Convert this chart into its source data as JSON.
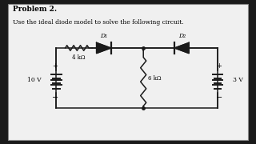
{
  "title_bold": "Problem 2.",
  "subtitle": "Use the ideal diode model to solve the following circuit.",
  "bg_color": "#f0f0f0",
  "circuit_color": "#1a1a1a",
  "text_color": "#000000",
  "outer_bg": "#1a1a1a",
  "V1_label": "10 V",
  "V2_label": "3 V",
  "R1_label": "4 kΩ",
  "R2_label": "6 kΩ",
  "D1_label": "D₁",
  "D2_label": "D₂",
  "V1_plus": "+",
  "V1_minus": "−",
  "V2_plus": "+",
  "V2_minus": "−",
  "figsize": [
    3.2,
    1.8
  ],
  "dpi": 100,
  "xlim": [
    0,
    10
  ],
  "ylim": [
    0,
    6
  ]
}
